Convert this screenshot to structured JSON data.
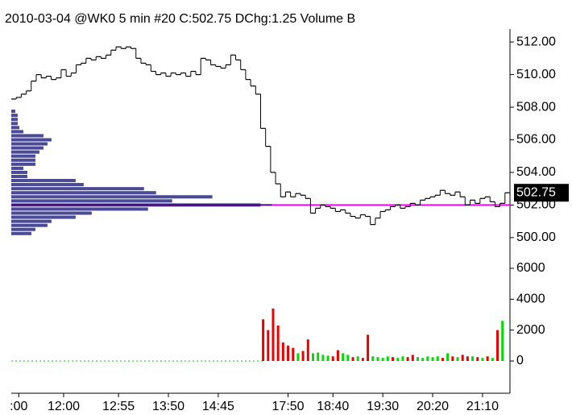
{
  "chart_data": {
    "type": "step",
    "title": "2010-03-04 @WK0  5 min   #20 C:502.75 DChg:1.25 Volume B",
    "price_color": "#000000",
    "close": [
      508.5,
      508.6,
      508.8,
      509.0,
      509.6,
      510.0,
      509.8,
      509.9,
      509.7,
      509.8,
      510.3,
      509.9,
      510.1,
      510.6,
      510.7,
      511.0,
      510.9,
      511.1,
      511.0,
      511.2,
      511.5,
      511.7,
      511.6,
      511.7,
      511.6,
      511.0,
      510.7,
      510.6,
      510.2,
      510.0,
      510.1,
      509.9,
      510.1,
      510.0,
      510.1,
      509.9,
      510.2,
      510.0,
      511.0,
      510.9,
      510.6,
      510.5,
      510.4,
      510.6,
      511.2,
      510.9,
      510.3,
      509.7,
      509.3,
      508.8,
      506.7,
      505.6,
      504.0,
      503.3,
      502.5,
      502.8,
      502.5,
      502.7,
      502.6,
      502.4,
      501.5,
      501.8,
      502.0,
      501.9,
      501.8,
      501.6,
      501.7,
      501.5,
      501.3,
      501.2,
      501.4,
      501.3,
      500.8,
      501.2,
      501.6,
      501.7,
      501.9,
      502.0,
      501.8,
      501.9,
      502.1,
      502.0,
      502.3,
      502.4,
      502.5,
      502.6,
      502.9,
      502.7,
      502.6,
      502.8,
      502.5,
      502.0,
      502.3,
      502.1,
      502.4,
      502.5,
      502.2,
      501.9,
      502.1,
      502.75
    ],
    "xlim": [
      -0.5,
      99.5
    ],
    "xticks": [
      {
        "value": 1,
        "label": ":00"
      },
      {
        "value": 10,
        "label": "12:00"
      },
      {
        "value": 21,
        "label": "12:55"
      },
      {
        "value": 31,
        "label": "13:50"
      },
      {
        "value": 41,
        "label": "14:45"
      },
      {
        "value": 55,
        "label": "17:50"
      },
      {
        "value": 64,
        "label": "18:40"
      },
      {
        "value": 74,
        "label": "19:30"
      },
      {
        "value": 84,
        "label": "20:20"
      },
      {
        "value": 94,
        "label": "21:10"
      }
    ],
    "ylim": [
      499.25,
      512.6
    ],
    "yticks": [
      {
        "value": 500,
        "label": "500.00"
      },
      {
        "value": 502,
        "label": "502.00"
      },
      {
        "value": 504,
        "label": "504.00"
      },
      {
        "value": 506,
        "label": "506.00"
      },
      {
        "value": 508,
        "label": "508.00"
      },
      {
        "value": 510,
        "label": "510.00"
      },
      {
        "value": 512,
        "label": "512.00"
      }
    ],
    "volume": [
      0,
      0,
      0,
      0,
      0,
      0,
      0,
      0,
      0,
      0,
      0,
      0,
      0,
      0,
      0,
      0,
      0,
      0,
      0,
      0,
      0,
      0,
      0,
      0,
      0,
      0,
      0,
      0,
      0,
      0,
      0,
      0,
      0,
      0,
      0,
      0,
      0,
      0,
      0,
      0,
      0,
      0,
      0,
      0,
      0,
      0,
      0,
      0,
      0,
      0,
      2700,
      2000,
      3400,
      2300,
      1200,
      1000,
      850,
      500,
      650,
      1400,
      500,
      550,
      400,
      350,
      300,
      700,
      500,
      400,
      250,
      300,
      200,
      1700,
      300,
      250,
      200,
      300,
      250,
      200,
      300,
      250,
      400,
      250,
      200,
      300,
      250,
      300,
      200,
      500,
      300,
      250,
      400,
      300,
      300,
      250,
      200,
      300,
      200,
      2000,
      2600,
      0
    ],
    "volume_dir": [
      "g",
      "r",
      "g",
      "g",
      "r",
      "g",
      "r",
      "g",
      "r",
      "g",
      "r",
      "g",
      "g",
      "r",
      "g",
      "r",
      "g",
      "g",
      "r",
      "g",
      "r",
      "g",
      "g",
      "r",
      "g",
      "r",
      "g",
      "g",
      "r",
      "g",
      "r",
      "g",
      "g",
      "r",
      "g",
      "r",
      "g",
      "g",
      "r",
      "g",
      "r",
      "g",
      "g",
      "r",
      "g",
      "r",
      "g",
      "g",
      "r",
      "g",
      "r",
      "r",
      "r",
      "r",
      "r",
      "r",
      "r",
      "g",
      "r",
      "r",
      "g",
      "g",
      "g",
      "g",
      "r",
      "r",
      "g",
      "g",
      "r",
      "g",
      "r",
      "r",
      "g",
      "g",
      "g",
      "g",
      "r",
      "g",
      "g",
      "r",
      "r",
      "g",
      "g",
      "g",
      "g",
      "g",
      "r",
      "g",
      "r",
      "g",
      "r",
      "r",
      "g",
      "r",
      "g",
      "r",
      "g",
      "r",
      "g",
      "g"
    ],
    "volume_palette": {
      "r": "#ee0000",
      "g": "#00dd00"
    },
    "vlim": [
      -1670,
      6940
    ],
    "vticks": [
      0,
      2000,
      4000,
      6000
    ],
    "profile_levels": [
      500.25,
      500.5,
      500.75,
      501,
      501.25,
      501.5,
      501.75,
      502,
      502.25,
      502.5,
      502.75,
      503,
      503.25,
      503.5,
      503.75,
      504,
      504.25,
      504.5,
      504.75,
      505,
      505.25,
      505.5,
      505.75,
      506,
      506.25,
      506.5,
      506.75,
      507,
      507.25,
      507.5,
      507.75
    ],
    "profile_values": [
      25,
      30,
      45,
      50,
      80,
      100,
      170,
      310,
      200,
      250,
      180,
      165,
      90,
      80,
      20,
      20,
      15,
      30,
      30,
      30,
      35,
      40,
      45,
      50,
      40,
      15,
      10,
      8,
      8,
      8,
      5
    ],
    "profile_xlim": [
      0,
      620
    ],
    "profile_color": "#4a4a96",
    "poc_color": "#ff00ff",
    "last_box_color": "#000000"
  }
}
